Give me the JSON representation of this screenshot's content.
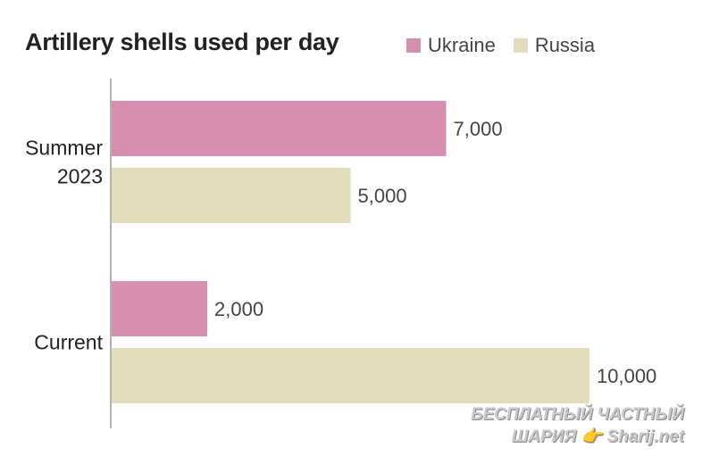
{
  "chart_data": {
    "type": "bar",
    "orientation": "horizontal",
    "title": "Artillery shells used per day",
    "categories": [
      "Summer\n2023",
      "Current"
    ],
    "series": [
      {
        "name": "Ukraine",
        "values": [
          7000,
          2000
        ],
        "color": "#d68faf"
      },
      {
        "name": "Russia",
        "values": [
          5000,
          10000
        ],
        "color": "#e0dcbc"
      }
    ],
    "data_labels": [
      [
        "7,000",
        "2,000"
      ],
      [
        "5,000",
        "10,000"
      ]
    ],
    "xlim": [
      0,
      10000
    ],
    "grid": false,
    "legend": "top-right",
    "xlabel": "",
    "ylabel": ""
  },
  "watermark": {
    "line1": "БЕСПЛАТНЫЙ ЧАСТНЫЙ",
    "line2": "ШАРИЯ 👉 Sharij.net"
  },
  "colors": {
    "axis": "#999999",
    "text": "#222222",
    "label": "#444444"
  }
}
